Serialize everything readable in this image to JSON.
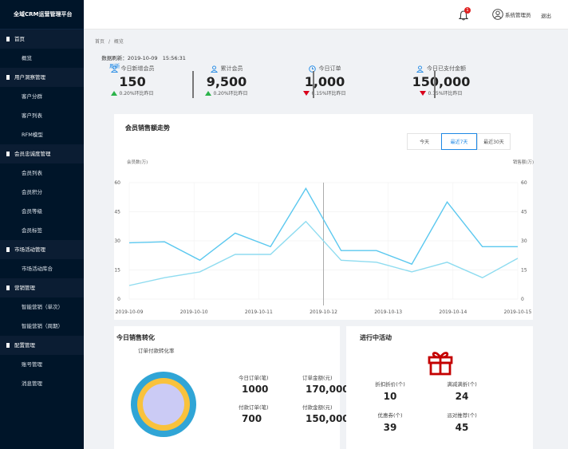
{
  "app_title": "全域CRM运营管理平台",
  "nav": [
    {
      "group": "首页",
      "items": [
        "概览"
      ]
    },
    {
      "group": "用户洞察管理",
      "items": [
        "客户分群",
        "客户列表",
        "RFM模型"
      ]
    },
    {
      "group": "会员忠诚度管理",
      "items": [
        "会员列表",
        "会员积分",
        "会员等级",
        "会员标签"
      ]
    },
    {
      "group": "市场活动管理",
      "items": [
        "市场活动库合"
      ]
    },
    {
      "group": "营销管理",
      "items": [
        "智能营销（单次）",
        "智能营销（周期）"
      ]
    },
    {
      "group": "配置管理",
      "items": [
        "账号管理",
        "消息管理"
      ]
    }
  ],
  "header": {
    "notification_count": "1",
    "user": "系统管理员",
    "logout": "退出"
  },
  "breadcrumb": {
    "home": "首页",
    "sep": "/",
    "current": "概览"
  },
  "refresh": {
    "label": "数据刷新：",
    "time": "2019-10-09   15:56:31",
    "link": "刷新"
  },
  "kpis": [
    {
      "label": "今日新增会员",
      "value": "150",
      "change": "0.20%环比昨日",
      "trend": "up"
    },
    {
      "label": "累计会员",
      "value": "9,500",
      "change": "0.20%环比昨日",
      "trend": "up"
    },
    {
      "label": "今日订单",
      "value": "1,000",
      "change": "0.15%环比昨日",
      "trend": "down"
    },
    {
      "label": "今日已支付金额",
      "value": "150,000",
      "change": "0.15%环比昨日",
      "trend": "down"
    }
  ],
  "trend_panel": {
    "title": "会员销售额走势",
    "tabs": [
      "今天",
      "最近7天",
      "最近30天"
    ],
    "active_tab": "最近7天"
  },
  "chart_data": {
    "type": "line",
    "ylabel_left": "会员数(万)",
    "ylabel_right": "销售额(万)",
    "ylim": [
      0,
      60
    ],
    "yticks": [
      "0",
      "15",
      "30",
      "45",
      "60"
    ],
    "xticks": [
      "2019-10-09",
      "2019-10-10",
      "2019-10-11",
      "2019-10-12",
      "2019-10-13",
      "2019-10-14",
      "2019-10-15"
    ],
    "series": [
      {
        "values": [
          29,
          29.5,
          20,
          34,
          27,
          57,
          25,
          25,
          18,
          50,
          27,
          27
        ]
      },
      {
        "values": [
          7,
          11,
          14,
          23,
          23,
          40,
          20,
          19,
          14,
          19,
          11,
          21
        ]
      }
    ],
    "grid": true,
    "highlight_x": "2019-10-12"
  },
  "conversion": {
    "title": "今日销售转化",
    "subtitle": "订单付款转化率",
    "items": [
      {
        "label": "今日订单(笔)",
        "value": "1000"
      },
      {
        "label": "订单金额(元)",
        "value": "170,000"
      },
      {
        "label": "付款订单(笔)",
        "value": "700"
      },
      {
        "label": "付款金额(元)",
        "value": "150,000"
      }
    ],
    "colors": [
      "#30a5d6",
      "#f9c23c",
      "#cbcbf5"
    ]
  },
  "activities": {
    "title": "进行中活动",
    "icon": "gift-icon",
    "items": [
      {
        "label": "折扣折价(个)",
        "value": "10"
      },
      {
        "label": "满减满折(个)",
        "value": "24"
      },
      {
        "label": "优惠券(个)",
        "value": "39"
      },
      {
        "label": "派对推荐(个)",
        "value": "45"
      }
    ]
  },
  "colors": {
    "sidebar": "#001529",
    "accent": "#1e88e5",
    "line": "#5bc8ef",
    "up": "#2bb34a",
    "down": "#d9001b",
    "gift": "#c40000"
  }
}
